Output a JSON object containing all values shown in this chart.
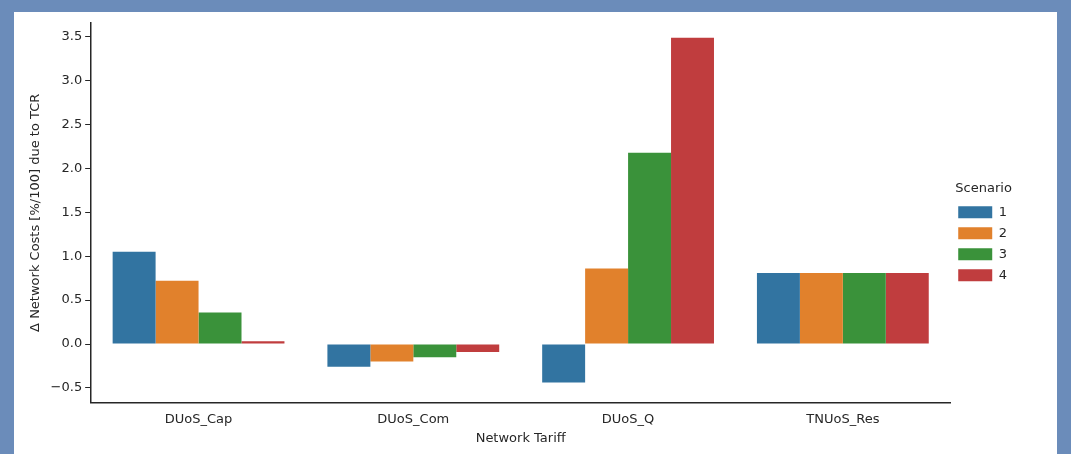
{
  "chart_data": {
    "type": "bar",
    "xlabel": "Network Tariff",
    "ylabel": "Δ Network Costs [%/100] due to TCR",
    "legend_title": "Scenario",
    "legend": "right",
    "grid": false,
    "categories": [
      "DUoS_Cap",
      "DUoS_Com",
      "DUoS_Q",
      "TNUoS_Res"
    ],
    "ylim": [
      -0.67,
      3.66
    ],
    "yticks": [
      {
        "value": -0.5,
        "label": "−0.5"
      },
      {
        "value": 0,
        "label": "0.0"
      },
      {
        "value": 0.5,
        "label": "0.5"
      },
      {
        "value": 1,
        "label": "1.0"
      },
      {
        "value": 1.5,
        "label": "1.5"
      },
      {
        "value": 2,
        "label": "2.0"
      },
      {
        "value": 2.5,
        "label": "2.5"
      },
      {
        "value": 3,
        "label": "3.0"
      },
      {
        "value": 3.5,
        "label": "3.5"
      }
    ],
    "series": [
      {
        "name": "1",
        "color": "#3274a1",
        "values": [
          1.05,
          -0.26,
          -0.44,
          0.81
        ]
      },
      {
        "name": "2",
        "color": "#e1812c",
        "values": [
          0.72,
          -0.2,
          0.86,
          0.81
        ]
      },
      {
        "name": "3",
        "color": "#3a923a",
        "values": [
          0.36,
          -0.15,
          2.18,
          0.81
        ]
      },
      {
        "name": "4",
        "color": "#c03d3e",
        "values": [
          0.03,
          -0.09,
          3.49,
          0.81
        ]
      }
    ]
  }
}
